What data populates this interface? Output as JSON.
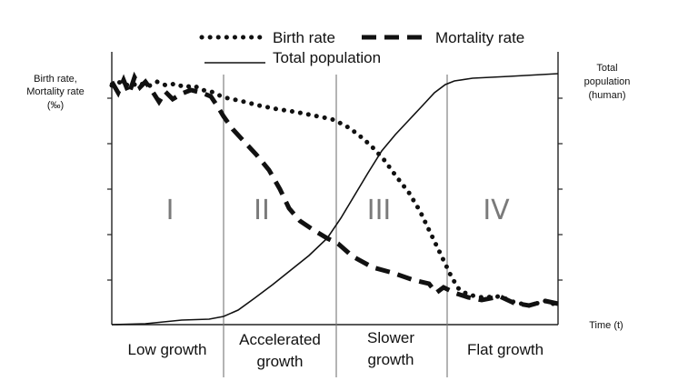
{
  "legend": {
    "birth_rate": "Birth rate",
    "mortality_rate": "Mortality rate",
    "total_population": "Total population"
  },
  "left_axis_label": [
    "Birth rate,",
    "Mortality rate",
    "(‰)"
  ],
  "right_axis_label": [
    "Total",
    "population",
    "(human)"
  ],
  "x_axis_label": "Time (t)",
  "phases": [
    {
      "numeral": "I",
      "label": [
        "Low growth"
      ]
    },
    {
      "numeral": "II",
      "label": [
        "Accelerated",
        "growth"
      ]
    },
    {
      "numeral": "III",
      "label": [
        "Slower",
        "growth"
      ]
    },
    {
      "numeral": "IV",
      "label": [
        "Flat growth"
      ]
    }
  ]
}
